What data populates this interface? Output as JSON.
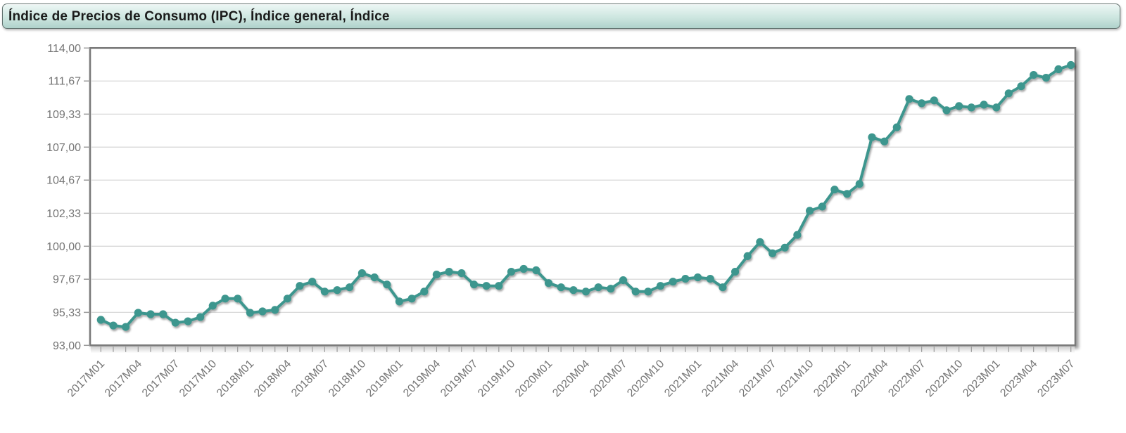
{
  "title": {
    "text": "Índice de Precios de Consumo (IPC), Índice general, Índice"
  },
  "colors": {
    "line": "#3E968E",
    "grid": "#D8D8D8",
    "plot_border": "#7A7A7A",
    "tick": "#9A9A9A",
    "axis_label": "#757575",
    "title_text": "#1B1B1B",
    "titlebar_top": "#EDF7F5",
    "titlebar_bottom": "#AFD2CB",
    "background": "#FFFFFF"
  },
  "chart_data": {
    "type": "line",
    "title": "Índice de Precios de Consumo (IPC), Índice general, Índice",
    "xlabel": "",
    "ylabel": "",
    "ylim": [
      93.0,
      114.0
    ],
    "grid": "horizontal",
    "legend": "none",
    "marker": "circle",
    "x_labels_shown_every": 3,
    "y_ticks": [
      114.0,
      111.67,
      109.33,
      107.0,
      104.67,
      102.33,
      100.0,
      97.67,
      95.33,
      93.0
    ],
    "y_tick_labels": [
      "114,00",
      "111,67",
      "109,33",
      "107,00",
      "104,67",
      "102,33",
      "100,00",
      "97,67",
      "95,33",
      "93,00"
    ],
    "x_tick_labels": [
      "2017M01",
      "2017M04",
      "2017M07",
      "2017M10",
      "2018M01",
      "2018M04",
      "2018M07",
      "2018M10",
      "2019M01",
      "2019M04",
      "2019M07",
      "2019M10",
      "2020M01",
      "2020M04",
      "2020M07",
      "2020M10",
      "2021M01",
      "2021M04",
      "2021M07",
      "2021M10",
      "2022M01",
      "2022M04",
      "2022M07",
      "2022M10",
      "2023M01",
      "2023M04",
      "2023M07"
    ],
    "x": [
      "2017M01",
      "2017M02",
      "2017M03",
      "2017M04",
      "2017M05",
      "2017M06",
      "2017M07",
      "2017M08",
      "2017M09",
      "2017M10",
      "2017M11",
      "2017M12",
      "2018M01",
      "2018M02",
      "2018M03",
      "2018M04",
      "2018M05",
      "2018M06",
      "2018M07",
      "2018M08",
      "2018M09",
      "2018M10",
      "2018M11",
      "2018M12",
      "2019M01",
      "2019M02",
      "2019M03",
      "2019M04",
      "2019M05",
      "2019M06",
      "2019M07",
      "2019M08",
      "2019M09",
      "2019M10",
      "2019M11",
      "2019M12",
      "2020M01",
      "2020M02",
      "2020M03",
      "2020M04",
      "2020M05",
      "2020M06",
      "2020M07",
      "2020M08",
      "2020M09",
      "2020M10",
      "2020M11",
      "2020M12",
      "2021M01",
      "2021M02",
      "2021M03",
      "2021M04",
      "2021M05",
      "2021M06",
      "2021M07",
      "2021M08",
      "2021M09",
      "2021M10",
      "2021M11",
      "2021M12",
      "2022M01",
      "2022M02",
      "2022M03",
      "2022M04",
      "2022M05",
      "2022M06",
      "2022M07",
      "2022M08",
      "2022M09",
      "2022M10",
      "2022M11",
      "2022M12",
      "2023M01",
      "2023M02",
      "2023M03",
      "2023M04",
      "2023M05",
      "2023M06",
      "2023M07"
    ],
    "values": [
      94.8,
      94.4,
      94.3,
      95.3,
      95.2,
      95.2,
      94.6,
      94.7,
      95.0,
      95.8,
      96.3,
      96.3,
      95.3,
      95.4,
      95.5,
      96.3,
      97.2,
      97.5,
      96.8,
      96.9,
      97.1,
      98.1,
      97.8,
      97.3,
      96.1,
      96.3,
      96.8,
      98.0,
      98.2,
      98.1,
      97.3,
      97.2,
      97.2,
      98.2,
      98.4,
      98.3,
      97.4,
      97.1,
      96.9,
      96.8,
      97.1,
      97.0,
      97.6,
      96.8,
      96.8,
      97.2,
      97.5,
      97.7,
      97.8,
      97.7,
      97.1,
      98.2,
      99.3,
      100.3,
      99.5,
      99.9,
      100.8,
      102.5,
      102.8,
      104.0,
      103.7,
      104.4,
      107.7,
      107.4,
      108.4,
      110.4,
      110.1,
      110.3,
      109.6,
      109.9,
      109.8,
      110.0,
      109.8,
      110.8,
      111.3,
      112.1,
      111.9,
      112.5,
      112.8
    ]
  }
}
